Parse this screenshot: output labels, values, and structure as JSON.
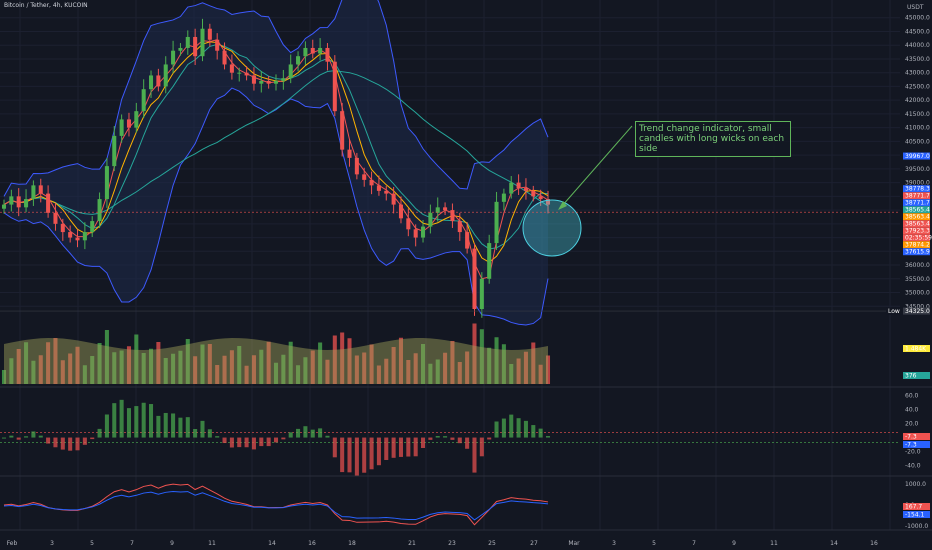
{
  "header": {
    "symbol_title": "Bitcoin / Tether, 4h, KUCOIN",
    "currency": "USDT"
  },
  "annotation": {
    "text": "Trend change indicator, small candles with long wicks on each side"
  },
  "colors": {
    "background": "#131722",
    "up": "#4caf50",
    "down": "#ef5350",
    "bb_fill": "#1e2a4a",
    "bb_line": "#3d5afe",
    "ma_fast": "#ef5350",
    "ma_mid": "#ffb300",
    "ma_slow": "#26a69a",
    "ma_long": "#26a69a",
    "annotation": "#5fb55a",
    "highlight": "#4dd0e1"
  },
  "chart_data": [
    {
      "type": "candlestick",
      "title": "Bitcoin / Tether, 4h, KUCOIN",
      "ylim": [
        34000,
        45500
      ],
      "y_ticks": [
        "45000.0",
        "44500.0",
        "44000.0",
        "43500.0",
        "43000.0",
        "42500.0",
        "42000.0",
        "41500.0",
        "41000.0",
        "40500.0",
        "40000.0",
        "39500.0",
        "39000.0",
        "38500.0",
        "38000.0",
        "37500.0",
        "37000.0",
        "36500.0",
        "36000.0",
        "35500.0",
        "35000.0",
        "34500.0"
      ],
      "x_ticks": [
        "Feb",
        "3",
        "5",
        "7",
        "9",
        "11",
        "14",
        "16",
        "18",
        "21",
        "23",
        "25",
        "27",
        "Mar",
        "3",
        "5",
        "7",
        "9",
        "11",
        "14",
        "16"
      ],
      "close": [
        38200,
        38500,
        38100,
        38400,
        38900,
        38600,
        37900,
        37500,
        37200,
        37000,
        36900,
        37200,
        37600,
        38400,
        39600,
        40700,
        41300,
        41000,
        41600,
        42400,
        42900,
        42500,
        43300,
        43800,
        43900,
        44300,
        43600,
        44600,
        44200,
        43800,
        43300,
        43000,
        43000,
        42900,
        42600,
        42700,
        42600,
        42700,
        42800,
        43300,
        43600,
        43900,
        43700,
        43900,
        43400,
        41600,
        40200,
        39900,
        39300,
        39100,
        38900,
        38700,
        38600,
        38200,
        37700,
        37300,
        37000,
        37400,
        37900,
        38100,
        38000,
        37600,
        37200,
        36600,
        34400,
        35500,
        36800,
        38300,
        38600,
        39000,
        38800,
        38700,
        38500,
        38400,
        38200
      ],
      "price_tags": [
        {
          "label": "39967.0",
          "color": "#2962ff",
          "value": 39967
        },
        {
          "label": "38778.3",
          "color": "#2962ff",
          "value": 38778
        },
        {
          "label": "38771.7",
          "color": "#ef5350",
          "value": 38771
        },
        {
          "label": "38771.7",
          "color": "#2962ff",
          "value": 38771
        },
        {
          "label": "38565.4",
          "color": "#26a69a",
          "value": 38565
        },
        {
          "label": "38563.4",
          "color": "#ff9800",
          "value": 38563
        },
        {
          "label": "38563.4",
          "color": "#ef5350",
          "value": 38563
        },
        {
          "label": "37923.3",
          "color": "#ef5350",
          "value": 37923
        },
        {
          "label": "02:35:59",
          "color": "#ef5350",
          "value": 37850
        },
        {
          "label": "37874.2",
          "color": "#ff9800",
          "value": 37874
        },
        {
          "label": "37615.9",
          "color": "#2962ff",
          "value": 37615
        },
        {
          "label": "Low",
          "color": "#131722",
          "value": 34325
        },
        {
          "label": "34325.0",
          "color": "#363a45",
          "value": 34325
        }
      ]
    },
    {
      "type": "bar",
      "title": "Volume",
      "tags": [
        {
          "label": "1.484K",
          "color": "#ffeb3b"
        },
        {
          "label": "376",
          "color": "#26a69a"
        }
      ]
    },
    {
      "type": "bar",
      "title": "Momentum",
      "y_ticks": [
        "60.0",
        "40.0",
        "20.0",
        "0.0",
        "-20.0",
        "-40.0"
      ],
      "tags": [
        {
          "label": "-7.3",
          "color": "#ef5350"
        },
        {
          "label": "-7.3",
          "color": "#2962ff"
        }
      ]
    },
    {
      "type": "line",
      "title": "Oscillator",
      "y_ticks": [
        "1000.0",
        "0.0",
        "-1000.0"
      ],
      "tags": [
        {
          "label": "167.7",
          "color": "#ef5350"
        },
        {
          "label": "-154.1",
          "color": "#2962ff"
        }
      ]
    }
  ]
}
